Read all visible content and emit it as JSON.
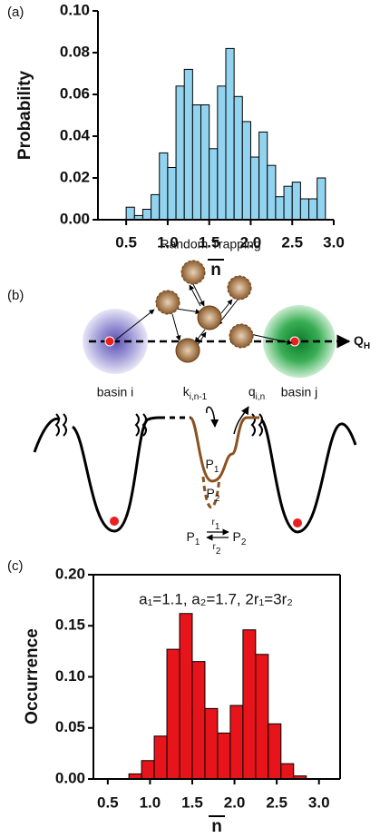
{
  "chart_data": [
    {
      "type": "histogram",
      "panel_label": "(a)",
      "y_label": "Probability",
      "x_label": "n",
      "x_overline": true,
      "color": "#92d4f0",
      "edge_color": "#000000",
      "box": false,
      "bins": [
        0.5,
        0.6,
        0.7,
        0.8,
        0.9,
        1.0,
        1.1,
        1.2,
        1.3,
        1.4,
        1.5,
        1.6,
        1.7,
        1.8,
        1.9,
        2.0,
        2.1,
        2.2,
        2.3,
        2.4,
        2.5,
        2.6,
        2.7,
        2.8,
        2.9
      ],
      "values": [
        0.006,
        0.002,
        0.005,
        0.012,
        0.032,
        0.025,
        0.064,
        0.072,
        0.055,
        0.055,
        0.034,
        0.064,
        0.082,
        0.059,
        0.047,
        0.03,
        0.042,
        0.026,
        0.011,
        0.016,
        0.018,
        0.01,
        0.01,
        0.02
      ],
      "xlim": [
        0.16,
        3.0
      ],
      "ylim": [
        0,
        0.1
      ],
      "xticks": [
        0.5,
        {
          "value": 1.0,
          "label": "1.0"
        },
        1.5,
        {
          "value": 2.0,
          "label": "2.0"
        },
        2.5,
        {
          "value": 3.0,
          "label": "3.0"
        }
      ],
      "yticks": [
        {
          "value": 0,
          "label": "0.00"
        },
        {
          "value": 0.02,
          "label": "0.02"
        },
        {
          "value": 0.04,
          "label": "0.04"
        },
        {
          "value": 0.06,
          "label": "0.06"
        },
        {
          "value": 0.08,
          "label": "0.08"
        },
        {
          "value": 0.1,
          "label": "0.10"
        }
      ]
    },
    {
      "type": "histogram",
      "panel_label": "(c)",
      "y_label": "Occurrence",
      "x_label": "n",
      "x_overline": true,
      "annotation": "a₁=1.1,  a₂=1.7,  2r₁=3r₂",
      "color": "#e8141b",
      "edge_color": "#000000",
      "box": true,
      "bins": [
        0.75,
        0.9,
        1.05,
        1.2,
        1.35,
        1.5,
        1.65,
        1.8,
        1.95,
        2.1,
        2.25,
        2.4,
        2.55,
        2.7,
        2.85
      ],
      "values": [
        0.005,
        0.018,
        0.042,
        0.127,
        0.162,
        0.115,
        0.069,
        0.045,
        0.072,
        0.146,
        0.122,
        0.054,
        0.015,
        0.003
      ],
      "xlim": [
        0.33,
        3.25
      ],
      "ylim": [
        0,
        0.2
      ],
      "xticks": [
        0.5,
        {
          "value": 1.0,
          "label": "1.0"
        },
        1.5,
        {
          "value": 2.0,
          "label": "2.0"
        },
        2.5,
        {
          "value": 3.0,
          "label": "3.0"
        }
      ],
      "yticks": [
        {
          "value": 0,
          "label": "0.00"
        },
        {
          "value": 0.05,
          "label": "0.05"
        },
        {
          "value": 0.1,
          "label": "0.10"
        },
        {
          "value": 0.15,
          "label": "0.15"
        },
        {
          "value": 0.2,
          "label": "0.20"
        }
      ]
    }
  ],
  "diagram": {
    "panel_label": "(b)",
    "title": "Random Trapping",
    "basin_i": "basin i",
    "basin_j": "basin j",
    "axis": {
      "main": "Q",
      "sub": "H"
    },
    "k": {
      "main": "k",
      "sub": "i,n-1"
    },
    "q": {
      "main": "q",
      "sub": "i,n"
    },
    "p1": {
      "main": "P",
      "sub": "1"
    },
    "p2": {
      "main": "P",
      "sub": "2"
    },
    "r1": {
      "main": "r",
      "sub": "1"
    },
    "r2": {
      "main": "r",
      "sub": "2"
    },
    "eq_p1": {
      "main": "P",
      "sub": "1"
    },
    "eq_p2": {
      "main": "P",
      "sub": "2"
    }
  }
}
